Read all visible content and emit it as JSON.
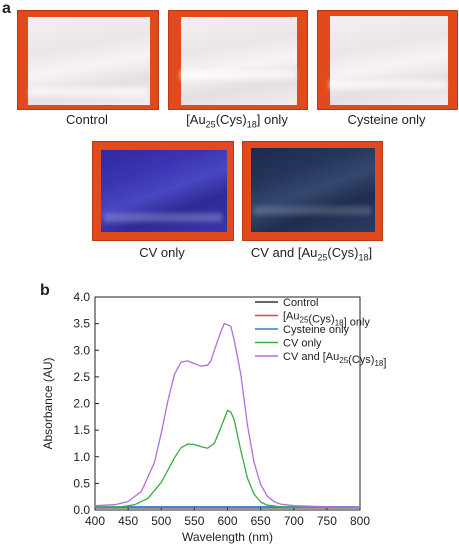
{
  "panel_a": {
    "letter": "a",
    "photos": [
      {
        "caption_pre": "Control",
        "caption_sub": "",
        "caption_post": "",
        "film": "white"
      },
      {
        "caption_pre": "[Au",
        "caption_sub": "25",
        "caption_mid": "(Cys)",
        "caption_sub2": "18",
        "caption_post": "] only",
        "film": "white"
      },
      {
        "caption_pre": "Cysteine only",
        "caption_sub": "",
        "caption_post": "",
        "film": "white"
      },
      {
        "caption_pre": "CV only",
        "caption_sub": "",
        "caption_post": "",
        "film": "blue"
      },
      {
        "caption_pre": "CV and [Au",
        "caption_sub": "25",
        "caption_mid": "(Cys)",
        "caption_sub2": "18",
        "caption_post": "]",
        "film": "dark"
      }
    ]
  },
  "panel_b": {
    "letter": "b"
  },
  "colors": {
    "photo_background": "#e04a1c",
    "control": "#333333",
    "au_only": "#e8432e",
    "cysteine_only": "#2f7fd6",
    "cv_only": "#3aaa45",
    "cv_and_au": "#b06ee0"
  },
  "chart_data": {
    "type": "line",
    "xlabel": "Wavelength (nm)",
    "ylabel": "Absorbance (AU)",
    "xlim": [
      400,
      800
    ],
    "ylim": [
      0,
      4.0
    ],
    "xticks": [
      "400",
      "450",
      "500",
      "550",
      "600",
      "650",
      "700",
      "750",
      "800"
    ],
    "yticks": [
      "0.0",
      "0.5",
      "1.0",
      "1.5",
      "2.0",
      "2.5",
      "3.0",
      "3.5",
      "4.0"
    ],
    "grid": false,
    "legend_position": "top-right",
    "legend": [
      {
        "pre": "Control",
        "sub": "",
        "mid": "",
        "sub2": "",
        "post": ""
      },
      {
        "pre": "[Au",
        "sub": "25",
        "mid": "(Cys)",
        "sub2": "18",
        "post": "] only"
      },
      {
        "pre": "Cysteine only",
        "sub": "",
        "mid": "",
        "sub2": "",
        "post": ""
      },
      {
        "pre": "CV only",
        "sub": "",
        "mid": "",
        "sub2": "",
        "post": ""
      },
      {
        "pre": "CV and [Au",
        "sub": "25",
        "mid": "(Cys)",
        "sub2": "18",
        "post": "]"
      }
    ],
    "series": [
      {
        "key": "control",
        "x": [
          400,
          500,
          600,
          700,
          800
        ],
        "y": [
          0.04,
          0.04,
          0.04,
          0.04,
          0.04
        ]
      },
      {
        "key": "au_only",
        "x": [
          400,
          500,
          600,
          700,
          800
        ],
        "y": [
          0.05,
          0.05,
          0.05,
          0.05,
          0.05
        ]
      },
      {
        "key": "cysteine_only",
        "x": [
          400,
          500,
          600,
          700,
          800
        ],
        "y": [
          0.06,
          0.06,
          0.06,
          0.06,
          0.06
        ]
      },
      {
        "key": "cv_only",
        "x": [
          400,
          440,
          460,
          480,
          500,
          510,
          520,
          530,
          540,
          550,
          560,
          570,
          580,
          590,
          600,
          605,
          610,
          620,
          630,
          640,
          650,
          660,
          680,
          700,
          750,
          800
        ],
        "y": [
          0.05,
          0.06,
          0.1,
          0.22,
          0.52,
          0.75,
          0.98,
          1.17,
          1.24,
          1.23,
          1.19,
          1.16,
          1.25,
          1.55,
          1.87,
          1.84,
          1.7,
          1.12,
          0.6,
          0.3,
          0.15,
          0.09,
          0.06,
          0.05,
          0.05,
          0.05
        ]
      },
      {
        "key": "cv_and_au",
        "x": [
          400,
          430,
          450,
          470,
          490,
          500,
          510,
          520,
          530,
          540,
          550,
          560,
          570,
          575,
          580,
          590,
          595,
          600,
          605,
          610,
          620,
          630,
          640,
          650,
          660,
          670,
          680,
          700,
          750,
          800
        ],
        "y": [
          0.08,
          0.1,
          0.16,
          0.35,
          0.9,
          1.45,
          2.05,
          2.55,
          2.78,
          2.8,
          2.75,
          2.7,
          2.72,
          2.8,
          3.0,
          3.35,
          3.5,
          3.48,
          3.45,
          3.2,
          2.55,
          1.6,
          0.9,
          0.48,
          0.26,
          0.16,
          0.11,
          0.08,
          0.06,
          0.05
        ]
      }
    ]
  }
}
